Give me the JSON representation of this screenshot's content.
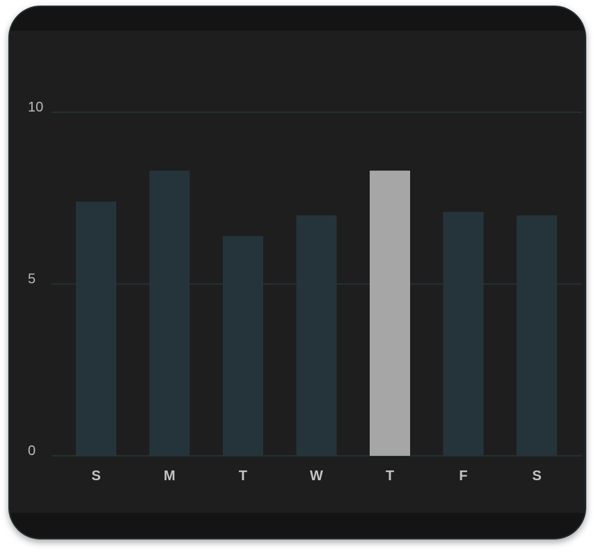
{
  "chart_data": {
    "type": "bar",
    "categories": [
      "S",
      "M",
      "T",
      "W",
      "T",
      "F",
      "S"
    ],
    "values": [
      7.4,
      8.3,
      6.4,
      7.0,
      8.3,
      7.1,
      7.0
    ],
    "highlighted_index": 4,
    "yticks": [
      0,
      5,
      10
    ],
    "ylim": [
      0,
      10
    ],
    "grid": true,
    "colors": {
      "bar": "#25343a",
      "highlight": "#a6a6a6",
      "grid": "#24373b",
      "background": "#1e1e1e"
    }
  }
}
